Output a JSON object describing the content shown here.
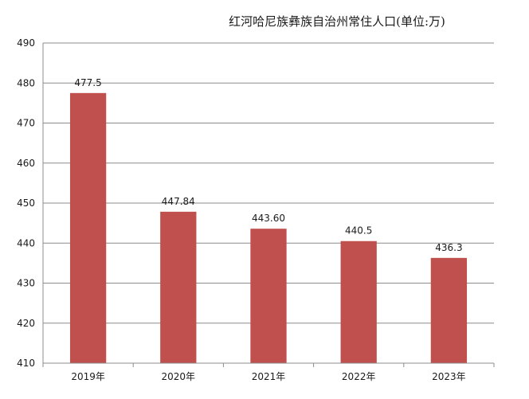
{
  "chart_data": {
    "type": "bar",
    "title": "红河哈尼族彝族自治州常住人口(单位:万)",
    "xlabel": "",
    "ylabel": "",
    "categories": [
      "2019年",
      "2020年",
      "2021年",
      "2022年",
      "2023年"
    ],
    "series": [
      {
        "values": [
          477.5,
          447.84,
          443.6,
          440.5,
          436.3
        ]
      }
    ],
    "data_labels": [
      "477.5",
      "447.84",
      "443.60",
      "440.5",
      "436.3"
    ],
    "ylim": [
      410,
      490
    ],
    "yticks": [
      410,
      420,
      430,
      440,
      450,
      460,
      470,
      480,
      490
    ],
    "grid": true,
    "legend": "none",
    "bar_color": "#c0504d",
    "grid_color": "#8c8c8c"
  }
}
